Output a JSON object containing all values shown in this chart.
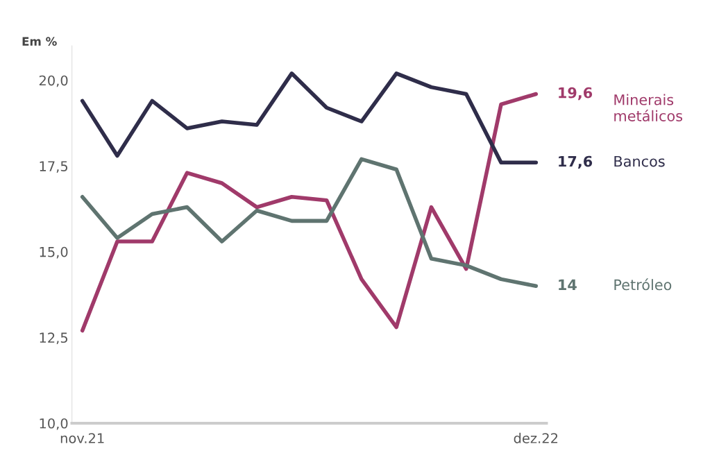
{
  "chart_data": {
    "type": "line",
    "subtitle": "Em %",
    "categories": [
      "nov.21",
      null,
      null,
      null,
      null,
      null,
      null,
      null,
      null,
      null,
      null,
      null,
      null,
      "dez.22"
    ],
    "series": [
      {
        "name": "Minerais\nmetálicos",
        "color": "#a03a6a",
        "values": [
          12.7,
          15.3,
          15.3,
          17.3,
          17.0,
          16.3,
          16.6,
          16.5,
          14.2,
          12.8,
          16.3,
          14.5,
          19.3,
          19.6
        ],
        "value_labels": [
          null,
          null,
          null,
          null,
          null,
          null,
          null,
          null,
          null,
          null,
          null,
          null,
          null,
          "19,6"
        ]
      },
      {
        "name": "Bancos",
        "color": "#2f2d4a",
        "values": [
          19.4,
          17.8,
          19.4,
          18.6,
          18.8,
          18.7,
          20.2,
          19.2,
          18.8,
          20.2,
          19.8,
          19.6,
          17.6,
          17.6
        ],
        "value_labels": [
          null,
          null,
          null,
          null,
          null,
          null,
          null,
          null,
          null,
          null,
          null,
          null,
          null,
          "17,6"
        ]
      },
      {
        "name": "Petróleo",
        "color": "#5f7470",
        "values": [
          16.6,
          15.4,
          16.1,
          16.3,
          15.3,
          16.2,
          15.9,
          15.9,
          17.7,
          17.4,
          14.8,
          14.6,
          14.2,
          14.0
        ],
        "value_labels": [
          null,
          null,
          null,
          null,
          null,
          null,
          null,
          null,
          null,
          null,
          null,
          null,
          null,
          "14"
        ]
      }
    ],
    "ylim": [
      10,
      21
    ],
    "yticks": [
      {
        "value": 10,
        "label": "10,0"
      },
      {
        "value": 12.5,
        "label": "12,5"
      },
      {
        "value": 15,
        "label": "15,0"
      },
      {
        "value": 17.5,
        "label": "17,5"
      },
      {
        "value": 20,
        "label": "20,0"
      }
    ],
    "grid": false,
    "legend": false
  }
}
